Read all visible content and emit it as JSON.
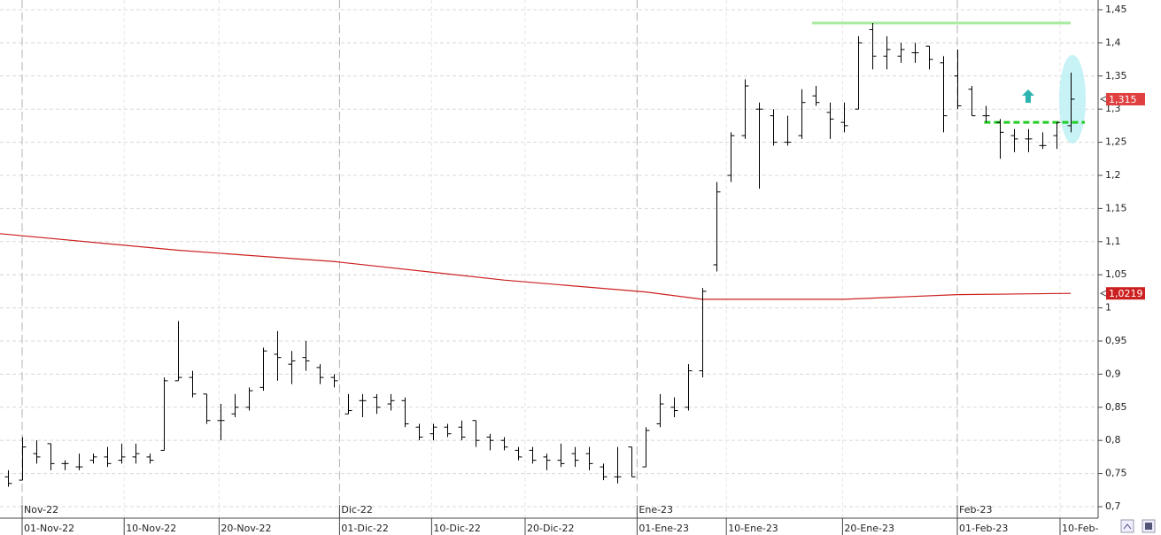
{
  "chart_data": {
    "type": "ohlc",
    "bar_color": "#000000",
    "open": [
      0.745,
      0.74,
      0.78,
      0.795,
      0.765,
      0.76,
      0.77,
      0.775,
      0.77,
      0.775,
      0.775,
      0.785,
      0.89,
      0.895,
      0.87,
      0.83,
      0.84,
      0.85,
      0.88,
      0.93,
      0.915,
      0.925,
      0.91,
      0.895,
      0.84,
      0.86,
      0.865,
      0.855,
      0.86,
      0.82,
      0.81,
      0.82,
      0.82,
      0.83,
      0.805,
      0.8,
      0.785,
      0.785,
      0.775,
      0.77,
      0.78,
      0.78,
      0.76,
      0.745,
      0.79,
      0.76,
      0.825,
      0.85,
      0.85,
      0.905,
      1.065,
      1.2,
      1.26,
      1.3,
      1.29,
      1.25,
      1.26,
      1.32,
      1.295,
      1.28,
      1.3,
      1.42,
      1.38,
      1.38,
      1.385,
      1.395,
      1.37,
      1.35,
      1.33,
      1.29,
      1.28,
      1.26,
      1.255,
      1.245,
      1.26,
      1.275
    ],
    "high": [
      0.755,
      0.805,
      0.8,
      0.795,
      0.77,
      0.78,
      0.78,
      0.79,
      0.795,
      0.795,
      0.78,
      0.895,
      0.98,
      0.905,
      0.87,
      0.855,
      0.87,
      0.88,
      0.94,
      0.965,
      0.935,
      0.95,
      0.915,
      0.9,
      0.87,
      0.87,
      0.87,
      0.87,
      0.865,
      0.825,
      0.825,
      0.825,
      0.83,
      0.83,
      0.81,
      0.805,
      0.79,
      0.79,
      0.78,
      0.795,
      0.79,
      0.79,
      0.765,
      0.79,
      0.79,
      0.82,
      0.87,
      0.865,
      0.915,
      1.03,
      1.19,
      1.265,
      1.345,
      1.31,
      1.3,
      1.29,
      1.33,
      1.335,
      1.31,
      1.31,
      1.41,
      1.43,
      1.41,
      1.4,
      1.4,
      1.395,
      1.38,
      1.39,
      1.335,
      1.305,
      1.285,
      1.27,
      1.27,
      1.265,
      1.28,
      1.355
    ],
    "low": [
      0.73,
      0.74,
      0.765,
      0.755,
      0.755,
      0.755,
      0.765,
      0.76,
      0.765,
      0.765,
      0.765,
      0.785,
      0.89,
      0.865,
      0.825,
      0.8,
      0.835,
      0.845,
      0.875,
      0.89,
      0.885,
      0.905,
      0.885,
      0.88,
      0.84,
      0.835,
      0.84,
      0.845,
      0.82,
      0.8,
      0.8,
      0.805,
      0.8,
      0.79,
      0.785,
      0.785,
      0.77,
      0.765,
      0.755,
      0.76,
      0.76,
      0.755,
      0.74,
      0.735,
      0.745,
      0.76,
      0.82,
      0.835,
      0.845,
      0.895,
      1.055,
      1.19,
      1.255,
      1.18,
      1.245,
      1.245,
      1.255,
      1.305,
      1.255,
      1.265,
      1.3,
      1.36,
      1.36,
      1.37,
      1.37,
      1.36,
      1.265,
      1.3,
      1.29,
      1.28,
      1.225,
      1.235,
      1.235,
      1.24,
      1.24,
      1.265
    ],
    "close": [
      0.735,
      0.79,
      0.775,
      0.765,
      0.765,
      0.76,
      0.775,
      0.765,
      0.775,
      0.78,
      0.77,
      0.89,
      0.895,
      0.87,
      0.83,
      0.83,
      0.85,
      0.875,
      0.935,
      0.925,
      0.92,
      0.92,
      0.895,
      0.89,
      0.845,
      0.86,
      0.85,
      0.86,
      0.825,
      0.805,
      0.82,
      0.81,
      0.805,
      0.8,
      0.8,
      0.79,
      0.775,
      0.77,
      0.77,
      0.765,
      0.77,
      0.765,
      0.745,
      0.745,
      0.745,
      0.815,
      0.855,
      0.845,
      0.905,
      1.025,
      1.175,
      1.26,
      1.335,
      1.3,
      1.25,
      1.25,
      1.31,
      1.31,
      1.285,
      1.275,
      1.4,
      1.38,
      1.39,
      1.39,
      1.385,
      1.375,
      1.29,
      1.305,
      1.29,
      1.29,
      1.265,
      1.255,
      1.255,
      1.245,
      1.28,
      1.315
    ],
    "last_close_label": "1,315",
    "moving_average": {
      "color": "#cc2020",
      "x": [
        -0.5625,
        12,
        23,
        35,
        45,
        49,
        59,
        67,
        75
      ],
      "values": [
        1.112,
        1.087,
        1.07,
        1.042,
        1.024,
        1.013,
        1.013,
        1.02,
        1.0219
      ],
      "last_label": "1,0219"
    },
    "levels": [
      {
        "value": 1.43,
        "from": 56.75,
        "to": 75,
        "color": "#a8eaa0",
        "style": "solid"
      },
      {
        "value": 1.28,
        "from": 68.9,
        "to": 76,
        "color": "#22cc22",
        "style": "dashed"
      }
    ],
    "xlim": [
      -0.5625,
      76.9375
    ],
    "ylim": [
      0.6826,
      1.4647
    ],
    "grid": true,
    "yticks": [
      {
        "value": 0.7,
        "label": "0,7"
      },
      {
        "value": 0.75,
        "label": "0,75"
      },
      {
        "value": 0.8,
        "label": "0,8"
      },
      {
        "value": 0.85,
        "label": "0,85"
      },
      {
        "value": 0.9,
        "label": "0,9"
      },
      {
        "value": 0.95,
        "label": "0,95"
      },
      1,
      {
        "value": 1.05,
        "label": "1,05"
      },
      {
        "value": 1.1,
        "label": "1,1"
      },
      {
        "value": 1.15,
        "label": "1,15"
      },
      {
        "value": 1.2,
        "label": "1,2"
      },
      {
        "value": 1.25,
        "label": "1,25"
      },
      {
        "value": 1.3,
        "label": "1,3"
      },
      {
        "value": 1.35,
        "label": "1,35"
      },
      {
        "value": 1.4,
        "label": "1,4"
      },
      {
        "value": 1.45,
        "label": "1,45"
      }
    ],
    "xticks_month": [
      {
        "value": 1,
        "label": "Nov-22"
      },
      {
        "value": 23.4,
        "label": "Dic-22"
      },
      {
        "value": 44.4,
        "label": "Ene-23"
      },
      {
        "value": 67,
        "label": "Feb-23"
      }
    ],
    "xticks_day": [
      {
        "value": 1,
        "label": "01-Nov-22"
      },
      {
        "value": 8.2,
        "label": "10-Nov-22"
      },
      {
        "value": 14.9,
        "label": "20-Nov-22"
      },
      {
        "value": 23.4,
        "label": "01-Dic-22"
      },
      {
        "value": 29.9,
        "label": "10-Dic-22"
      },
      {
        "value": 36.5,
        "label": "20-Dic-22"
      },
      {
        "value": 44.4,
        "label": "01-Ene-23"
      },
      {
        "value": 50.7,
        "label": "10-Ene-23"
      },
      {
        "value": 58.9,
        "label": "20-Ene-23"
      },
      {
        "value": 67,
        "label": "01-Feb-23"
      },
      {
        "value": 74.25,
        "label": "10-Feb-"
      }
    ]
  }
}
